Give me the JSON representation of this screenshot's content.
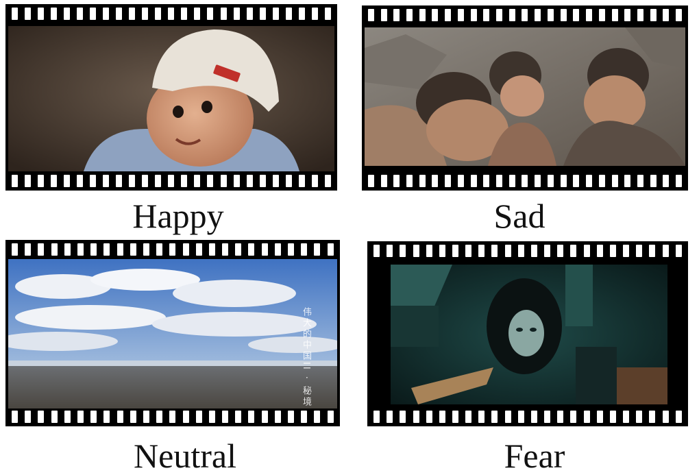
{
  "panels": [
    {
      "id": "happy",
      "caption": "Happy"
    },
    {
      "id": "sad",
      "caption": "Sad"
    },
    {
      "id": "neutral",
      "caption": "Neutral",
      "overlay_text": "伟大的中国II · 秘境"
    },
    {
      "id": "fear",
      "caption": "Fear"
    }
  ]
}
